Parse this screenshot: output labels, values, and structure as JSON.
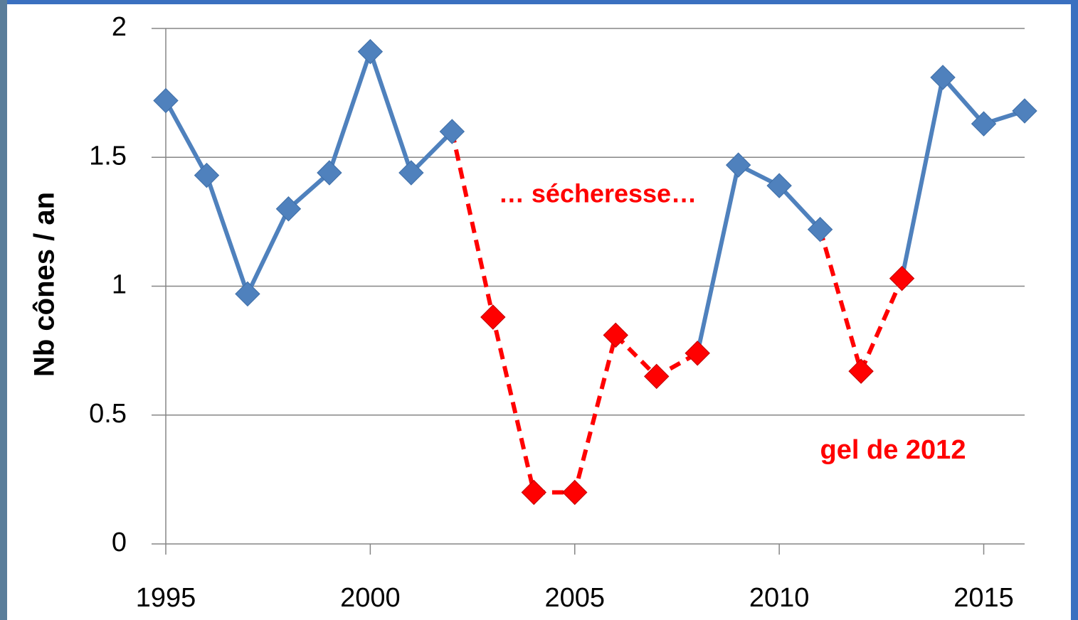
{
  "chart_data": {
    "type": "line",
    "y_label": "Nb cônes / an",
    "annotations": [
      "… sécheresse…",
      "gel de 2012"
    ],
    "x": [
      1995,
      1996,
      1997,
      1998,
      1999,
      2000,
      2001,
      2002,
      2003,
      2004,
      2005,
      2006,
      2007,
      2008,
      2009,
      2010,
      2011,
      2012,
      2013,
      2014,
      2015,
      2016
    ],
    "series": [
      {
        "color": "#4f81bd",
        "dashed": false,
        "values": [
          1.72,
          1.43,
          0.97,
          1.3,
          1.44,
          1.91,
          1.44,
          1.6,
          null,
          null,
          null,
          null,
          null,
          0.74,
          1.47,
          1.39,
          1.22,
          null,
          1.03,
          1.81,
          1.63,
          1.68
        ]
      },
      {
        "color": "#ff0000",
        "dashed": true,
        "values": [
          null,
          null,
          null,
          null,
          null,
          null,
          null,
          1.6,
          0.88,
          0.2,
          0.2,
          0.81,
          0.65,
          0.74,
          null,
          null,
          1.22,
          0.67,
          1.03,
          null,
          null,
          null
        ]
      }
    ],
    "marker_colors": [
      "#4f81bd",
      "#4f81bd",
      "#4f81bd",
      "#4f81bd",
      "#4f81bd",
      "#4f81bd",
      "#4f81bd",
      "#4f81bd",
      "#ff0000",
      "#ff0000",
      "#ff0000",
      "#ff0000",
      "#ff0000",
      "#ff0000",
      "#4f81bd",
      "#4f81bd",
      "#4f81bd",
      "#ff0000",
      "#ff0000",
      "#4f81bd",
      "#4f81bd",
      "#4f81bd"
    ],
    "xlim": [
      1995,
      2016
    ],
    "xticks": [
      1995,
      2000,
      2005,
      2010,
      2015
    ],
    "ylim": [
      0,
      2
    ],
    "yticks": [
      0,
      0.5,
      1,
      1.5,
      2
    ],
    "grid": true
  }
}
